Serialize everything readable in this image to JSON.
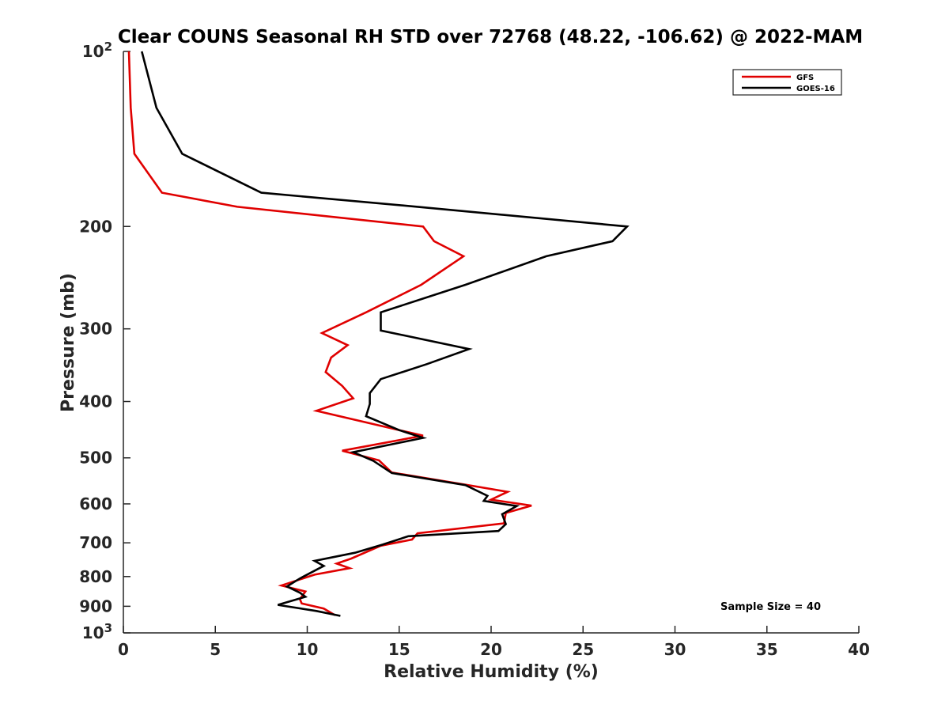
{
  "chart_data": {
    "type": "line",
    "title": "Clear COUNS Seasonal RH STD over 72768 (48.22, -106.62) @ 2022-MAM",
    "xlabel": "Relative Humidity (%)",
    "ylabel": "Pressure (mb)",
    "xlim": [
      0,
      40
    ],
    "ylim": [
      100,
      1000
    ],
    "yscale": "log",
    "yreversed": true,
    "grid": false,
    "x_ticks": [
      0,
      5,
      10,
      15,
      20,
      25,
      30,
      35,
      40
    ],
    "x_tick_labels": [
      "0",
      "5",
      "10",
      "15",
      "20",
      "25",
      "30",
      "35",
      "40"
    ],
    "y_ticks": [
      {
        "value": 100,
        "base": "10",
        "exp": "2"
      },
      {
        "value": 200,
        "label": "200"
      },
      {
        "value": 300,
        "label": "300"
      },
      {
        "value": 400,
        "label": "400"
      },
      {
        "value": 500,
        "label": "500"
      },
      {
        "value": 600,
        "label": "600"
      },
      {
        "value": 700,
        "label": "700"
      },
      {
        "value": 800,
        "label": "800"
      },
      {
        "value": 900,
        "label": "900"
      },
      {
        "value": 1000,
        "base": "10",
        "exp": "3"
      }
    ],
    "legend": {
      "placement": "top-right"
    },
    "annotation": "Sample Size = 40",
    "series": [
      {
        "name": "GFS",
        "color": "#e00000",
        "points": [
          [
            0.3,
            100
          ],
          [
            0.4,
            125
          ],
          [
            0.6,
            150
          ],
          [
            2.1,
            175
          ],
          [
            6.2,
            185
          ],
          [
            16.3,
            200
          ],
          [
            16.9,
            212
          ],
          [
            18.5,
            225
          ],
          [
            16.2,
            252
          ],
          [
            13.2,
            281
          ],
          [
            10.8,
            305
          ],
          [
            12.2,
            320
          ],
          [
            11.3,
            336
          ],
          [
            11.0,
            356
          ],
          [
            11.9,
            376
          ],
          [
            12.5,
            395
          ],
          [
            10.5,
            415
          ],
          [
            16.3,
            458
          ],
          [
            11.9,
            486
          ],
          [
            13.9,
            505
          ],
          [
            14.6,
            530
          ],
          [
            18.6,
            556
          ],
          [
            20.9,
            572
          ],
          [
            20.0,
            590
          ],
          [
            22.2,
            604
          ],
          [
            20.8,
            622
          ],
          [
            20.7,
            648
          ],
          [
            16.0,
            674
          ],
          [
            15.7,
            691
          ],
          [
            14.0,
            708
          ],
          [
            12.4,
            745
          ],
          [
            11.6,
            760
          ],
          [
            12.3,
            774
          ],
          [
            10.4,
            794
          ],
          [
            8.6,
            829
          ],
          [
            9.9,
            849
          ],
          [
            9.6,
            875
          ],
          [
            9.7,
            890
          ],
          [
            10.9,
            908
          ],
          [
            11.5,
            932
          ]
        ]
      },
      {
        "name": "GOES-16",
        "color": "#000000",
        "points": [
          [
            1.0,
            100
          ],
          [
            1.8,
            125
          ],
          [
            3.2,
            150
          ],
          [
            7.5,
            175
          ],
          [
            16.0,
            185
          ],
          [
            27.4,
            200
          ],
          [
            26.6,
            212
          ],
          [
            23.0,
            225
          ],
          [
            18.6,
            252
          ],
          [
            14.0,
            281
          ],
          [
            14.0,
            302
          ],
          [
            18.8,
            325
          ],
          [
            16.5,
            345
          ],
          [
            14.0,
            366
          ],
          [
            13.4,
            387
          ],
          [
            13.4,
            404
          ],
          [
            13.2,
            424
          ],
          [
            15.0,
            448
          ],
          [
            16.3,
            462
          ],
          [
            12.5,
            489
          ],
          [
            13.6,
            506
          ],
          [
            14.6,
            531
          ],
          [
            18.6,
            557
          ],
          [
            19.8,
            581
          ],
          [
            19.6,
            593
          ],
          [
            21.4,
            605
          ],
          [
            20.6,
            625
          ],
          [
            20.8,
            650
          ],
          [
            20.4,
            668
          ],
          [
            15.5,
            682
          ],
          [
            14.1,
            705
          ],
          [
            12.6,
            728
          ],
          [
            10.4,
            752
          ],
          [
            10.9,
            767
          ],
          [
            9.6,
            806
          ],
          [
            8.9,
            832
          ],
          [
            9.6,
            853
          ],
          [
            9.9,
            867
          ],
          [
            8.4,
            895
          ],
          [
            10.5,
            917
          ],
          [
            11.8,
            935
          ]
        ]
      }
    ]
  }
}
